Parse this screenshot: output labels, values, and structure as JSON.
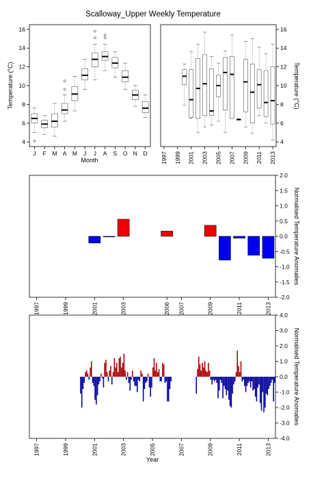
{
  "title": "Scalloway_Upper Weekly Temperature",
  "chart_data": [
    {
      "id": "monthly-box",
      "type": "box",
      "xlabel": "Month",
      "ylabel": "Temperature (°C)",
      "ylim": [
        3.5,
        16.5
      ],
      "yticks": [
        4,
        6,
        8,
        10,
        12,
        14,
        16
      ],
      "categories": [
        "J",
        "F",
        "M",
        "A",
        "M",
        "J",
        "J",
        "A",
        "S",
        "O",
        "N",
        "D"
      ],
      "boxes": [
        {
          "lo": 5.0,
          "q1": 6.0,
          "med": 6.5,
          "q3": 7.0,
          "hi": 7.6,
          "out": [
            4.1
          ]
        },
        {
          "lo": 4.8,
          "q1": 5.5,
          "med": 5.9,
          "q3": 6.3,
          "hi": 6.8,
          "out": []
        },
        {
          "lo": 4.6,
          "q1": 5.6,
          "med": 6.2,
          "q3": 7.0,
          "hi": 8.1,
          "out": []
        },
        {
          "lo": 6.2,
          "q1": 7.0,
          "med": 7.4,
          "q3": 8.1,
          "hi": 9.0,
          "out": [
            9.6,
            10.5
          ]
        },
        {
          "lo": 7.3,
          "q1": 8.4,
          "med": 9.1,
          "q3": 9.9,
          "hi": 11.0,
          "out": []
        },
        {
          "lo": 9.6,
          "q1": 10.6,
          "med": 11.1,
          "q3": 11.8,
          "hi": 12.8,
          "out": []
        },
        {
          "lo": 10.6,
          "q1": 12.0,
          "med": 12.8,
          "q3": 13.5,
          "hi": 14.4,
          "out": [
            15.1,
            15.8
          ]
        },
        {
          "lo": 11.6,
          "q1": 12.7,
          "med": 13.1,
          "q3": 13.6,
          "hi": 14.4,
          "out": [
            15.1,
            15.4
          ]
        },
        {
          "lo": 10.9,
          "q1": 11.9,
          "med": 12.4,
          "q3": 13.0,
          "hi": 13.6,
          "out": []
        },
        {
          "lo": 9.6,
          "q1": 10.4,
          "med": 10.9,
          "q3": 11.6,
          "hi": 12.4,
          "out": []
        },
        {
          "lo": 7.8,
          "q1": 8.5,
          "med": 9.0,
          "q3": 9.5,
          "hi": 10.0,
          "out": []
        },
        {
          "lo": 6.6,
          "q1": 7.1,
          "med": 7.6,
          "q3": 8.3,
          "hi": 9.0,
          "out": []
        }
      ]
    },
    {
      "id": "yearly-box",
      "type": "box",
      "ylabel": "Temperature (°C)",
      "ylim": [
        3.5,
        16.5
      ],
      "yticks": [
        4,
        6,
        8,
        10,
        12,
        14,
        16
      ],
      "xlim": [
        1996.5,
        2013.5
      ],
      "xticks": [
        1997,
        1999,
        2001,
        2003,
        2005,
        2007,
        2009,
        2011,
        2013
      ],
      "boxes": [
        {
          "year": 2000,
          "lo": 7.9,
          "q1": 10.1,
          "med": 11.0,
          "q3": 11.7,
          "hi": 12.3
        },
        {
          "year": 2001,
          "lo": 6.5,
          "q1": 6.6,
          "med": 8.5,
          "q3": 11.7,
          "hi": 13.6
        },
        {
          "year": 2002,
          "lo": 5.0,
          "q1": 6.5,
          "med": 9.7,
          "q3": 12.9,
          "hi": 14.4
        },
        {
          "year": 2003,
          "lo": 5.6,
          "q1": 6.8,
          "med": 10.2,
          "q3": 13.3,
          "hi": 15.7
        },
        {
          "year": 2004,
          "lo": 5.8,
          "q1": 6.8,
          "med": 7.3,
          "q3": 11.8,
          "hi": 13.1
        },
        {
          "year": 2005,
          "lo": 6.2,
          "q1": 8.8,
          "med": 10.0,
          "q3": 11.1,
          "hi": 12.4
        },
        {
          "year": 2006,
          "lo": 5.0,
          "q1": 7.4,
          "med": 11.4,
          "q3": 13.0,
          "hi": 13.7
        },
        {
          "year": 2007,
          "lo": 6.5,
          "q1": 6.5,
          "med": 11.2,
          "q3": 13.1,
          "hi": 15.4
        },
        {
          "year": 2008,
          "lo": 6.3,
          "q1": 6.3,
          "med": 6.4,
          "q3": 6.4,
          "hi": 6.4
        },
        {
          "year": 2009,
          "lo": 5.6,
          "q1": 7.2,
          "med": 10.4,
          "q3": 12.8,
          "hi": 14.7
        },
        {
          "year": 2010,
          "lo": 4.9,
          "q1": 6.0,
          "med": 9.3,
          "q3": 12.3,
          "hi": 15.0
        },
        {
          "year": 2011,
          "lo": 6.8,
          "q1": 7.6,
          "med": 10.1,
          "q3": 11.7,
          "hi": 14.1
        },
        {
          "year": 2012,
          "lo": 6.0,
          "q1": 6.7,
          "med": 8.2,
          "q3": 11.6,
          "hi": 13.4
        },
        {
          "year": 2013,
          "lo": 4.2,
          "q1": 5.9,
          "med": 8.4,
          "q3": 12.0,
          "hi": 14.4
        }
      ]
    },
    {
      "id": "annual-anomaly",
      "type": "bar",
      "ylabel": "Normalised Temperature Anomalies",
      "ylim": [
        -2.0,
        2.0
      ],
      "yticks": [
        -2.0,
        -1.5,
        -1.0,
        -0.5,
        0.0,
        0.5,
        1.0,
        1.5,
        2.0
      ],
      "xlim": [
        1996.5,
        2013.5
      ],
      "xticks": [
        1997,
        1999,
        2001,
        2003,
        2006,
        2007,
        2009,
        2011,
        2013
      ],
      "bars": [
        {
          "year": 2001,
          "value": -0.22
        },
        {
          "year": 2002,
          "value": -0.02
        },
        {
          "year": 2003,
          "value": 0.56
        },
        {
          "year": 2006,
          "value": 0.17
        },
        {
          "year": 2009,
          "value": 0.36
        },
        {
          "year": 2010,
          "value": -0.78
        },
        {
          "year": 2011,
          "value": -0.06
        },
        {
          "year": 2012,
          "value": -0.62
        },
        {
          "year": 2013,
          "value": -0.72
        }
      ],
      "colors": {
        "positive": "#ee0000",
        "negative": "#0000ee"
      }
    },
    {
      "id": "monthly-anomaly",
      "type": "bar",
      "xlabel": "Year",
      "ylabel": "Normalised Temperature Anomalies",
      "ylim": [
        -4.0,
        4.0
      ],
      "yticks": [
        -4.0,
        -3.0,
        -2.0,
        -1.0,
        0.0,
        1.0,
        2.0,
        3.0,
        4.0
      ],
      "xlim": [
        1996.5,
        2013.5
      ],
      "xticks": [
        1997,
        1999,
        2001,
        2003,
        2005,
        2007,
        2009,
        2011,
        2013
      ],
      "start": 2000.0,
      "step": 0.0833,
      "values": [
        -1.1,
        -2.0,
        -0.8,
        -0.4,
        0.3,
        0.4,
        0.2,
        -0.2,
        0.6,
        1.0,
        -0.4,
        -0.6,
        -1.5,
        -1.8,
        -1.2,
        -0.5,
        -0.3,
        0.2,
        -0.1,
        -0.7,
        0.9,
        1.1,
        0.3,
        -0.3,
        0.4,
        0.7,
        -0.5,
        0.3,
        1.2,
        0.6,
        0.9,
        0.3,
        1.2,
        1.3,
        0.6,
        0.9,
        1.5,
        0.4,
        -0.2,
        0.3,
        -0.4,
        -0.9,
        -0.2,
        0.4,
        -0.3,
        -0.6,
        -0.6,
        -1.0,
        -0.2,
        -0.3,
        0.4,
        0.2,
        -1.6,
        -0.8,
        -0.4,
        -0.3,
        0.2,
        -0.7,
        -1.3,
        -0.7,
        0.6,
        1.2,
        0.4,
        0.9,
        0.3,
        0.5,
        -0.3,
        -0.3,
        0.9,
        0.8,
        -0.4,
        -0.3,
        -1.6,
        -1.6,
        -0.8,
        -0.3,
        null,
        null,
        null,
        null,
        null,
        null,
        null,
        null,
        null,
        null,
        null,
        null,
        null,
        null,
        null,
        null,
        null,
        null,
        null,
        null,
        -1.1,
        0.5,
        1.3,
        0.8,
        0.4,
        0.9,
        0.6,
        1.0,
        0.4,
        0.3,
        0.9,
        0.4,
        -0.2,
        -0.5,
        -0.2,
        -0.3,
        -0.2,
        -0.4,
        -1.4,
        -0.9,
        -0.2,
        -0.4,
        -1.4,
        -0.6,
        -0.8,
        -1.2,
        -0.9,
        -1.5,
        -1.9,
        -2.0,
        -1.1,
        -0.5,
        -0.3,
        0.3,
        1.7,
        0.7,
        0.3,
        1.0,
        -0.3,
        -0.2,
        -0.6,
        -1.0,
        -0.6,
        -0.4,
        -0.3,
        -0.7,
        -0.3,
        -0.9,
        -0.8,
        -1.3,
        -1.6,
        -0.7,
        -0.5,
        -1.7,
        -2.2,
        -1.0,
        -2.3,
        -2.0,
        -1.1,
        -1.2,
        -0.8,
        -0.6,
        -0.4,
        -0.2,
        -1.6,
        -0.4
      ],
      "colors": {
        "positive": "#aa0000",
        "negative": "#000099"
      }
    }
  ]
}
